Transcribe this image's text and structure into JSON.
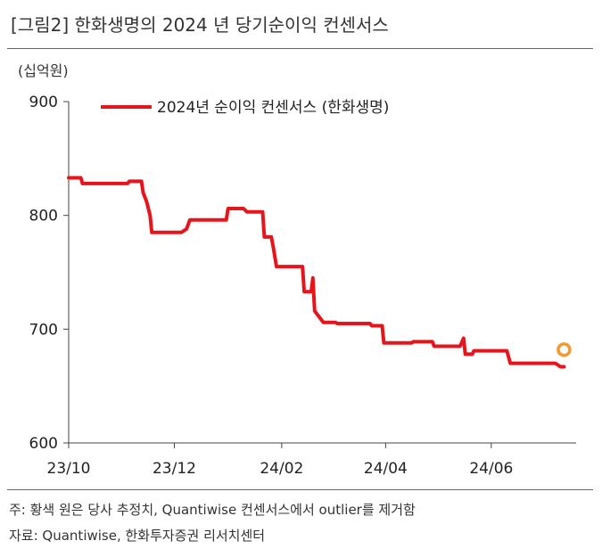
{
  "figure": {
    "title": "[그림2]   한화생명의 2024 년 당기순이익 컨센서스",
    "unit": "(십억원)",
    "note": "주: 황색 원은 당사 추정치, Quantiwise 컨센서스에서 outlier를 제거함",
    "source": "자료: Quantiwise, 한화투자증권 리서치센터"
  },
  "chart_data": {
    "type": "line",
    "title": "",
    "xlabel": "",
    "ylabel": "(십억원)",
    "ylim": [
      600,
      900
    ],
    "yticks": [
      600,
      700,
      800,
      900
    ],
    "xlim": [
      "2023-10-01",
      "2024-07-20"
    ],
    "xticks": [
      {
        "date": "2023-10-01",
        "label": "23/10"
      },
      {
        "date": "2023-12-01",
        "label": "23/12"
      },
      {
        "date": "2024-02-01",
        "label": "24/02"
      },
      {
        "date": "2024-04-01",
        "label": "24/04"
      },
      {
        "date": "2024-06-01",
        "label": "24/06"
      }
    ],
    "grid": false,
    "legend": "top",
    "series": [
      {
        "name": "2024년 순이익 컨센서스 (한화생명)",
        "color": "#e8141b",
        "points": [
          [
            "2023-10-01",
            833
          ],
          [
            "2023-10-08",
            833
          ],
          [
            "2023-10-09",
            828
          ],
          [
            "2023-11-04",
            828
          ],
          [
            "2023-11-05",
            830
          ],
          [
            "2023-11-12",
            830
          ],
          [
            "2023-11-13",
            820
          ],
          [
            "2023-11-15",
            812
          ],
          [
            "2023-11-17",
            800
          ],
          [
            "2023-11-18",
            785
          ],
          [
            "2023-12-05",
            785
          ],
          [
            "2023-12-08",
            788
          ],
          [
            "2023-12-10",
            796
          ],
          [
            "2023-12-31",
            796
          ],
          [
            "2024-01-01",
            806
          ],
          [
            "2024-01-10",
            806
          ],
          [
            "2024-01-12",
            803
          ],
          [
            "2024-01-21",
            803
          ],
          [
            "2024-01-22",
            781
          ],
          [
            "2024-01-26",
            781
          ],
          [
            "2024-01-27",
            773
          ],
          [
            "2024-01-29",
            755
          ],
          [
            "2024-02-13",
            755
          ],
          [
            "2024-02-14",
            733
          ],
          [
            "2024-02-18",
            733
          ],
          [
            "2024-02-19",
            745
          ],
          [
            "2024-02-20",
            716
          ],
          [
            "2024-02-23",
            710
          ],
          [
            "2024-02-25",
            706
          ],
          [
            "2024-03-03",
            706
          ],
          [
            "2024-03-04",
            705
          ],
          [
            "2024-03-23",
            705
          ],
          [
            "2024-03-24",
            703
          ],
          [
            "2024-03-30",
            703
          ],
          [
            "2024-03-31",
            688
          ],
          [
            "2024-04-16",
            688
          ],
          [
            "2024-04-17",
            689
          ],
          [
            "2024-04-28",
            689
          ],
          [
            "2024-04-29",
            685
          ],
          [
            "2024-05-14",
            685
          ],
          [
            "2024-05-16",
            692
          ],
          [
            "2024-05-17",
            678
          ],
          [
            "2024-05-21",
            678
          ],
          [
            "2024-05-22",
            681
          ],
          [
            "2024-06-10",
            681
          ],
          [
            "2024-06-12",
            670
          ],
          [
            "2024-07-08",
            670
          ],
          [
            "2024-07-11",
            667
          ],
          [
            "2024-07-13",
            667
          ]
        ]
      }
    ],
    "estimate": {
      "date": "2024-07-13",
      "value": 682,
      "color": "#f59a28"
    }
  }
}
